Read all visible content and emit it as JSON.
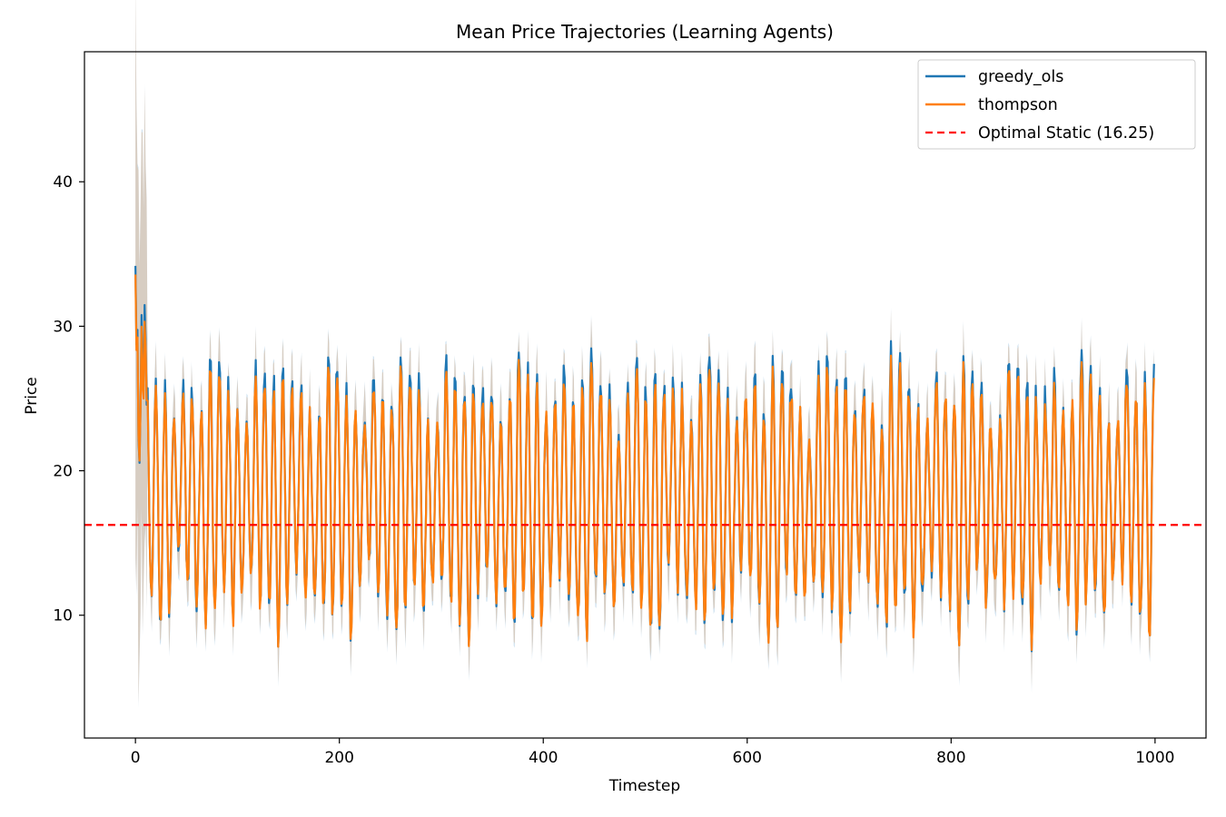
{
  "chart_data": {
    "type": "line",
    "title": "Mean Price Trajectories (Learning Agents)",
    "xlabel": "Timestep",
    "ylabel": "Price",
    "xlim": [
      -50,
      1050
    ],
    "ylim": [
      1.5,
      49
    ],
    "xticks": [
      0,
      200,
      400,
      600,
      800,
      1000
    ],
    "yticks": [
      10,
      20,
      30,
      40
    ],
    "grid": false,
    "legend_position": "top-right",
    "reference_line": {
      "name": "Optimal Static (16.25)",
      "y": 16.25,
      "color": "#ff0000",
      "style": "dashed"
    },
    "series": [
      {
        "name": "greedy_ols",
        "color": "#1f77b4",
        "n_points": 1000,
        "mean_level": 18.2,
        "oscillation_period_approx": 9,
        "typical_peak": 27,
        "typical_trough": 9.5,
        "initial_value": 33.8,
        "band_range_early": [
          3.5,
          47
        ]
      },
      {
        "name": "thompson",
        "color": "#ff7f0e",
        "n_points": 1000,
        "mean_level": 18.0,
        "oscillation_period_approx": 9,
        "typical_peak": 26.5,
        "typical_trough": 9.5,
        "initial_value": 33.8,
        "band_range_early": [
          3.5,
          47
        ]
      }
    ]
  }
}
